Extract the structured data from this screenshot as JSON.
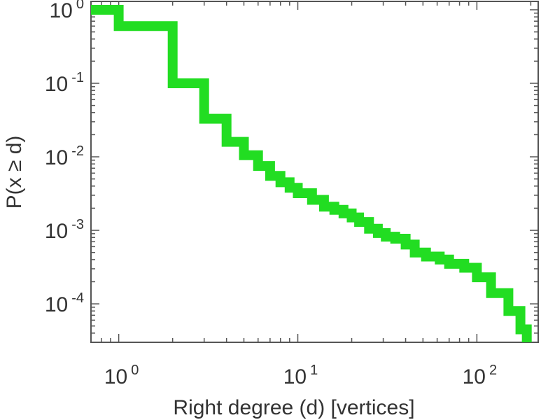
{
  "chart_data": {
    "type": "line",
    "title": "",
    "xlabel": "Right degree (d) [vertices]",
    "ylabel": "P(x ≥ d)",
    "x_scale": "log",
    "y_scale": "log",
    "xlim": [
      0.7,
      220
    ],
    "ylim": [
      3e-05,
      1.3
    ],
    "x_ticks": [
      {
        "value": 1,
        "base": "10",
        "exp": "0"
      },
      {
        "value": 10,
        "base": "10",
        "exp": "1"
      },
      {
        "value": 100,
        "base": "10",
        "exp": "2"
      }
    ],
    "y_ticks": [
      {
        "value": 1,
        "base": "10",
        "exp": "0"
      },
      {
        "value": 0.1,
        "base": "10",
        "exp": "-1"
      },
      {
        "value": 0.01,
        "base": "10",
        "exp": "-2"
      },
      {
        "value": 0.001,
        "base": "10",
        "exp": "-3"
      },
      {
        "value": 0.0001,
        "base": "10",
        "exp": "-4"
      }
    ],
    "grid": false,
    "line_color": "#22dd22",
    "series": [
      {
        "step": "post",
        "points": [
          [
            0.7,
            1.0
          ],
          [
            1,
            0.6
          ],
          [
            2,
            0.1
          ],
          [
            3,
            0.033
          ],
          [
            4,
            0.016
          ],
          [
            5,
            0.0105
          ],
          [
            6,
            0.0075
          ],
          [
            7,
            0.0055
          ],
          [
            8,
            0.0045
          ],
          [
            9,
            0.0038
          ],
          [
            10,
            0.0032
          ],
          [
            12,
            0.0026
          ],
          [
            14,
            0.0021
          ],
          [
            16,
            0.0019
          ],
          [
            18,
            0.0017
          ],
          [
            20,
            0.0015
          ],
          [
            22,
            0.0013
          ],
          [
            25,
            0.00105
          ],
          [
            28,
            0.00092
          ],
          [
            31,
            0.00082
          ],
          [
            35,
            0.00077
          ],
          [
            40,
            0.00064
          ],
          [
            45,
            0.0005
          ],
          [
            52,
            0.00044
          ],
          [
            62,
            0.0004
          ],
          [
            70,
            0.00035
          ],
          [
            85,
            0.00031
          ],
          [
            100,
            0.00023
          ],
          [
            120,
            0.00014
          ],
          [
            150,
            8e-05
          ],
          [
            175,
            4.5e-05
          ],
          [
            190,
            3e-05
          ]
        ]
      }
    ]
  }
}
